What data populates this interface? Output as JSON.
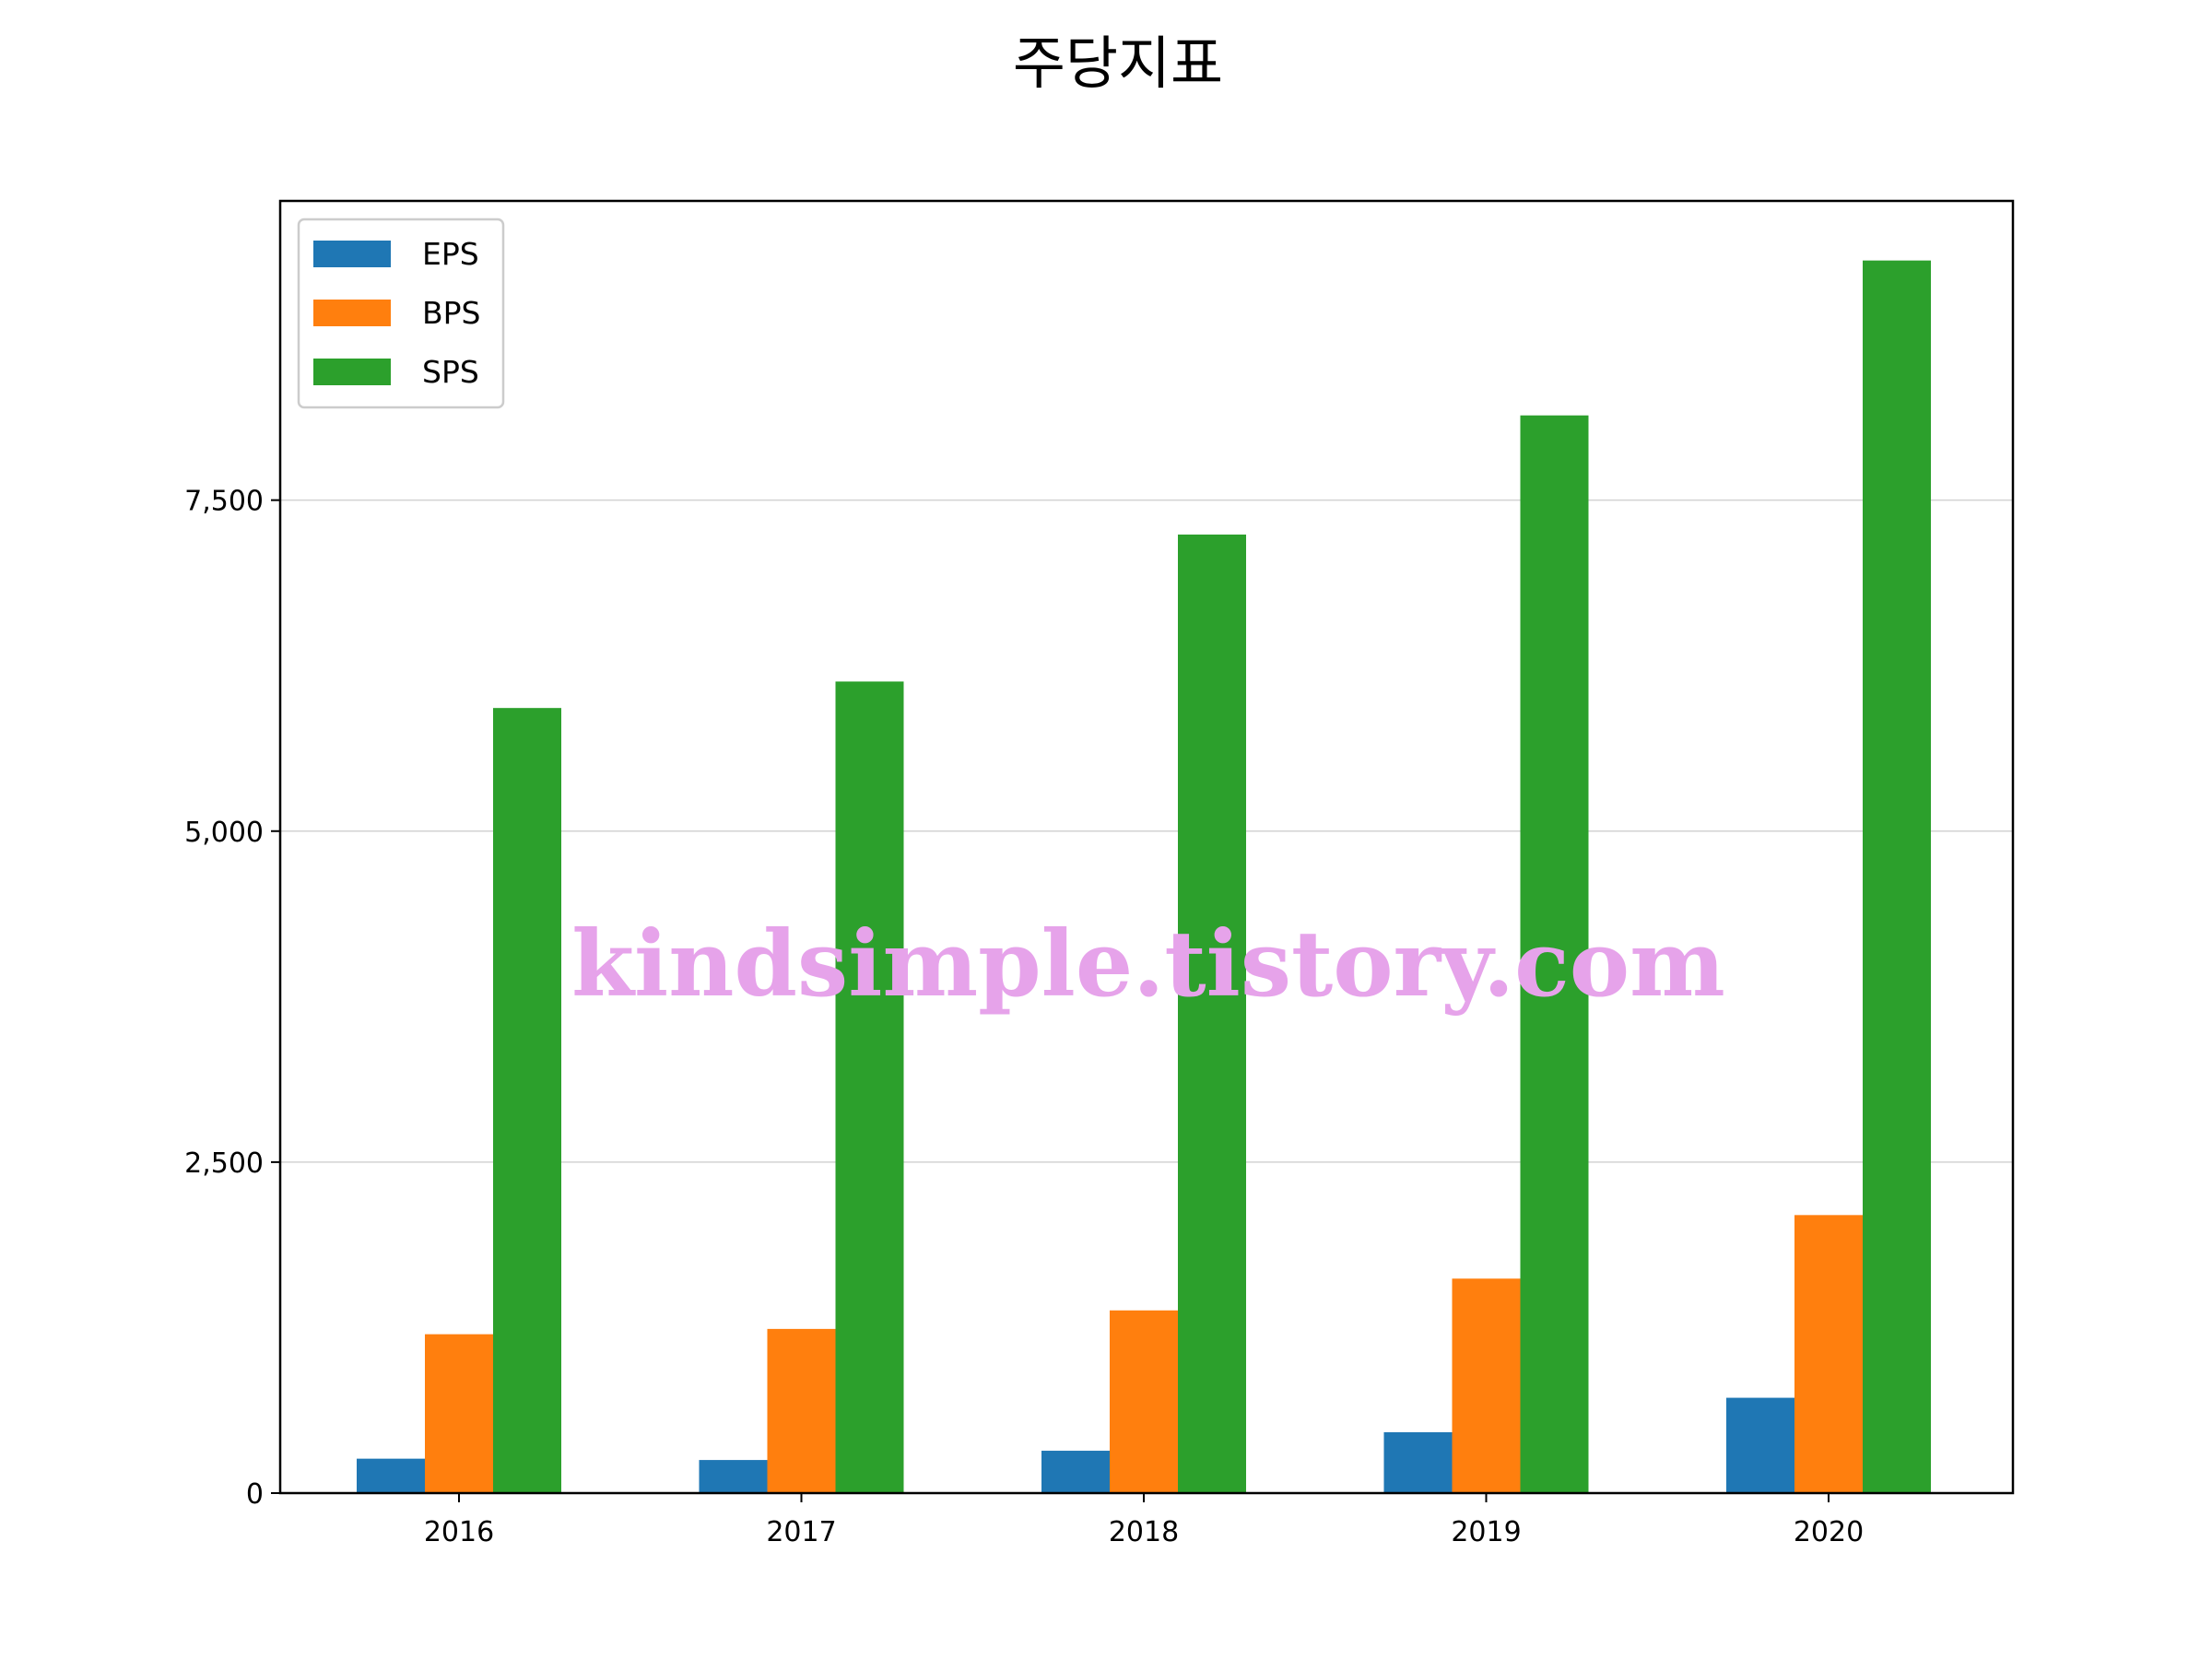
{
  "chart_data": {
    "type": "bar",
    "title": "주당지표",
    "xlabel": "",
    "ylabel": "",
    "categories": [
      "2016",
      "2017",
      "2018",
      "2019",
      "2020"
    ],
    "series": [
      {
        "name": "EPS",
        "values": [
          260,
          250,
          320,
          460,
          720
        ],
        "color": "#1f77b4"
      },
      {
        "name": "BPS",
        "values": [
          1200,
          1240,
          1380,
          1620,
          2100
        ],
        "color": "#ff7f0e"
      },
      {
        "name": "SPS",
        "values": [
          5930,
          6130,
          7240,
          8140,
          9310
        ],
        "color": "#2ca02c"
      }
    ],
    "ylim": [
      0,
      9760
    ],
    "yticks": [
      0,
      2500,
      5000,
      7500
    ],
    "ytick_labels": [
      "0",
      "2,500",
      "5,000",
      "7,500"
    ],
    "grid": {
      "y": true,
      "x": false
    },
    "legend_position": "upper-left"
  },
  "watermark": {
    "text": "kindsimple.tistory.com",
    "color": "#e6a3ea"
  }
}
